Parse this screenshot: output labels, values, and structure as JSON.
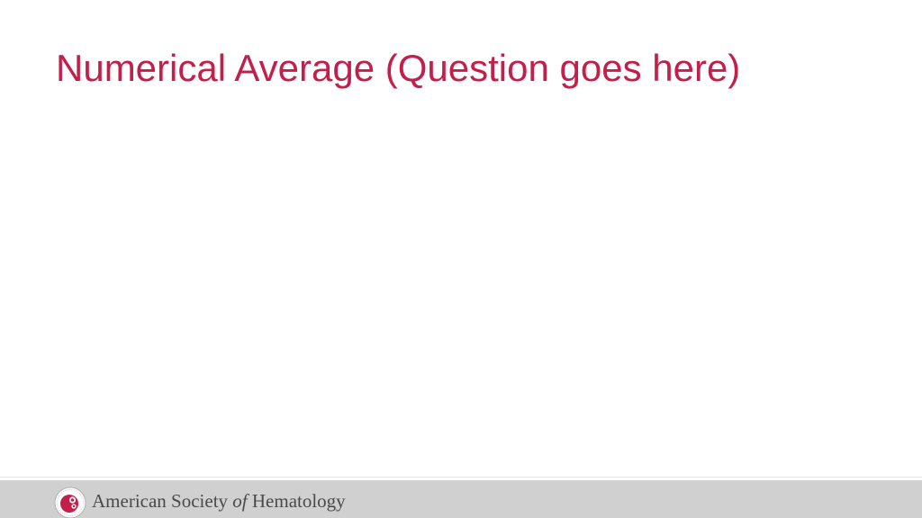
{
  "slide": {
    "title": "Numerical Average (Question goes here)",
    "title_color": "#c41e4a"
  },
  "footer": {
    "background_color": "#d0d0d0",
    "logo_icon": "ash-seal-icon",
    "org_name_part1": "American Society ",
    "org_name_italic": "of",
    "org_name_part2": " Hematology"
  }
}
